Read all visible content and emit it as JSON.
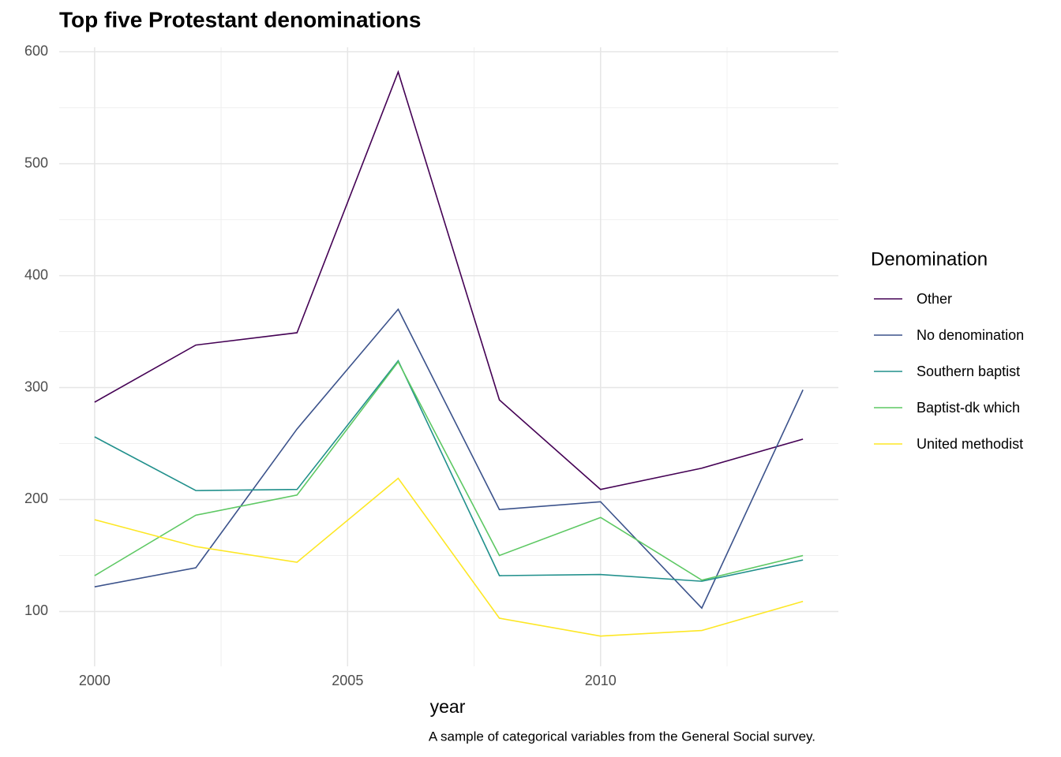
{
  "chart_data": {
    "type": "line",
    "title": "Top five Protestant denominations",
    "x_label": "year",
    "caption": "A sample of categorical variables from the General Social survey.",
    "legend_title": "Denomination",
    "legend_position": "right",
    "grid": true,
    "x": [
      2000,
      2002,
      2004,
      2006,
      2008,
      2010,
      2012,
      2014
    ],
    "series": [
      {
        "name": "Other",
        "color": "#440154",
        "values": [
          287,
          338,
          349,
          582,
          289,
          209,
          228,
          254
        ]
      },
      {
        "name": "No denomination",
        "color": "#3b528b",
        "values": [
          122,
          139,
          263,
          370,
          191,
          198,
          103,
          298
        ]
      },
      {
        "name": "Southern baptist",
        "color": "#21908c",
        "values": [
          256,
          208,
          209,
          324,
          132,
          133,
          127,
          146
        ]
      },
      {
        "name": "Baptist-dk which",
        "color": "#5dc863",
        "values": [
          132,
          186,
          204,
          323,
          150,
          184,
          128,
          150
        ]
      },
      {
        "name": "United methodist",
        "color": "#fde725",
        "values": [
          182,
          158,
          144,
          219,
          94,
          78,
          83,
          109
        ]
      }
    ],
    "xlim": [
      1999.3,
      2014.7
    ],
    "ylim": [
      51,
      604
    ],
    "xticks": [
      2000,
      2005,
      2010
    ],
    "yticks": [
      100,
      200,
      300,
      400,
      500,
      600
    ],
    "xminor": [
      2002.5,
      2007.5,
      2012.5
    ],
    "yminor": [
      150,
      250,
      350,
      450,
      550
    ]
  }
}
